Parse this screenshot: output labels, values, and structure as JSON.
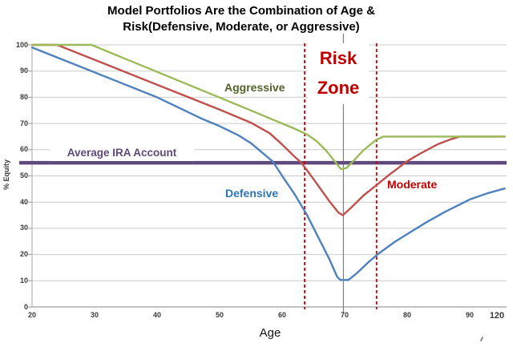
{
  "title": {
    "line1": "Model Portfolios Are the Combination of Age &",
    "line2": "Risk(Defensive, Moderate, or Aggressive)"
  },
  "chart_data": {
    "type": "line",
    "title": "Model Portfolios Are the Combination of Age & Risk(Defensive, Moderate, or Aggressive)",
    "xlabel": "Age",
    "ylabel": "% Equity",
    "xlim": [
      20,
      96
    ],
    "ylim": [
      0,
      100
    ],
    "grid": "horizontal",
    "x_tick_labels": [
      "20",
      "30",
      "40",
      "50",
      "60",
      "70",
      "80",
      "90",
      "120"
    ],
    "y_tick_labels": [
      "0",
      "10",
      "20",
      "30",
      "40",
      "50",
      "60",
      "70",
      "80",
      "90",
      "100"
    ],
    "series": [
      {
        "name": "Defensive",
        "color": "#4F81BD",
        "label_color": "#2E74B5",
        "points": [
          [
            20,
            99
          ],
          [
            30,
            89.5
          ],
          [
            40,
            80
          ],
          [
            47,
            72
          ],
          [
            50,
            69
          ],
          [
            53,
            65.5
          ],
          [
            55,
            62.5
          ],
          [
            57,
            58.5
          ],
          [
            58.5,
            55.5
          ],
          [
            60,
            50
          ],
          [
            62,
            43
          ],
          [
            64,
            35
          ],
          [
            66,
            25.5
          ],
          [
            67.5,
            18.5
          ],
          [
            68.8,
            11.5
          ],
          [
            69.3,
            10.3
          ],
          [
            70.6,
            10.3
          ],
          [
            72,
            13
          ],
          [
            74,
            17.5
          ],
          [
            75.5,
            20.5
          ],
          [
            78,
            24.8
          ],
          [
            80,
            27.8
          ],
          [
            83,
            32.2
          ],
          [
            86,
            36.2
          ],
          [
            90,
            41
          ],
          [
            93,
            43.5
          ],
          [
            95.6,
            45.2
          ]
        ]
      },
      {
        "name": "Moderate",
        "color": "#C0504D",
        "label_color": "#C00000",
        "points": [
          [
            20,
            100
          ],
          [
            24,
            100
          ],
          [
            30,
            94.3
          ],
          [
            40,
            84.8
          ],
          [
            50,
            75.3
          ],
          [
            55,
            70.3
          ],
          [
            58,
            66.3
          ],
          [
            60,
            62
          ],
          [
            62,
            57.3
          ],
          [
            63,
            55.2
          ],
          [
            64.5,
            50.5
          ],
          [
            66,
            45.5
          ],
          [
            67.5,
            40.5
          ],
          [
            69,
            36
          ],
          [
            69.7,
            35
          ],
          [
            71,
            37.8
          ],
          [
            73,
            42.5
          ],
          [
            75,
            46.3
          ],
          [
            77,
            50.2
          ],
          [
            80,
            55.6
          ],
          [
            82,
            58.4
          ],
          [
            85,
            62.2
          ],
          [
            87,
            64
          ],
          [
            88.5,
            65
          ],
          [
            95.6,
            65
          ]
        ]
      },
      {
        "name": "Aggressive",
        "color": "#9BBB59",
        "label_color": "#4F6228",
        "points": [
          [
            20,
            100
          ],
          [
            29.5,
            100
          ],
          [
            35,
            94.6
          ],
          [
            40,
            89.7
          ],
          [
            45,
            84.8
          ],
          [
            50,
            79.9
          ],
          [
            55,
            75
          ],
          [
            60,
            70
          ],
          [
            62,
            68
          ],
          [
            64,
            65.8
          ],
          [
            65.5,
            63.3
          ],
          [
            67,
            59.8
          ],
          [
            68.5,
            55.3
          ],
          [
            69.4,
            52.6
          ],
          [
            70.3,
            53
          ],
          [
            71.5,
            56
          ],
          [
            73,
            59.8
          ],
          [
            75,
            63.7
          ],
          [
            76.2,
            65
          ],
          [
            95.6,
            65
          ]
        ]
      }
    ],
    "reference_line": {
      "label": "Average IRA Account",
      "value": 55,
      "color": "#604A7B"
    },
    "risk_zone": {
      "line1": "Risk",
      "line2": "Zone",
      "x_start": 63.6,
      "x_end": 75.1,
      "color": "#CC0000"
    },
    "age_marker": {
      "x": 69.8
    }
  }
}
